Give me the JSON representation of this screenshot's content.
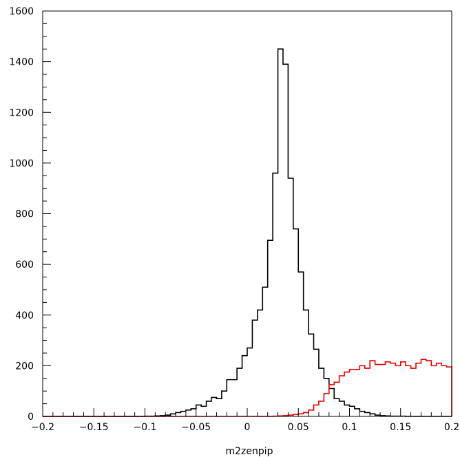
{
  "chart_data": {
    "type": "line",
    "title": "",
    "xlabel": "m2zenpip",
    "ylabel": "",
    "xlim": [
      -0.2,
      0.2
    ],
    "ylim": [
      0,
      1600
    ],
    "grid": false,
    "x_ticks": [
      "-0.2",
      "-0.15",
      "-0.1",
      "-0.05",
      "0",
      "0.05",
      "0.1",
      "0.15",
      "0.2"
    ],
    "y_ticks": [
      "0",
      "200",
      "400",
      "600",
      "800",
      "1000",
      "1200",
      "1400",
      "1600"
    ],
    "bin_width": 0.005,
    "series": [
      {
        "color": "#000000",
        "values": [
          0,
          0,
          0,
          0,
          0,
          0,
          0,
          0,
          0,
          0,
          0,
          0,
          0,
          0,
          0,
          0,
          0,
          0,
          0,
          0,
          1,
          1,
          2,
          3,
          5,
          10,
          15,
          20,
          25,
          30,
          45,
          40,
          60,
          75,
          70,
          100,
          145,
          145,
          190,
          240,
          270,
          380,
          420,
          510,
          695,
          960,
          1450,
          1390,
          940,
          740,
          570,
          420,
          325,
          265,
          190,
          150,
          110,
          70,
          60,
          45,
          40,
          30,
          20,
          15,
          10,
          5,
          3,
          2,
          1,
          1,
          1,
          0,
          0,
          0,
          0,
          0,
          0,
          0,
          0,
          0
        ]
      },
      {
        "color": "#e00000",
        "values": [
          0,
          0,
          0,
          0,
          0,
          0,
          0,
          0,
          0,
          0,
          0,
          0,
          0,
          0,
          0,
          0,
          0,
          0,
          0,
          0,
          0,
          0,
          0,
          0,
          0,
          0,
          0,
          0,
          0,
          0,
          0,
          0,
          0,
          0,
          0,
          0,
          0,
          0,
          0,
          0,
          0,
          0,
          0,
          0,
          0,
          1,
          2,
          3,
          5,
          8,
          10,
          15,
          25,
          45,
          60,
          90,
          125,
          135,
          160,
          175,
          185,
          185,
          200,
          190,
          220,
          205,
          205,
          215,
          210,
          200,
          215,
          200,
          190,
          210,
          225,
          220,
          200,
          210,
          200,
          195
        ]
      }
    ]
  }
}
